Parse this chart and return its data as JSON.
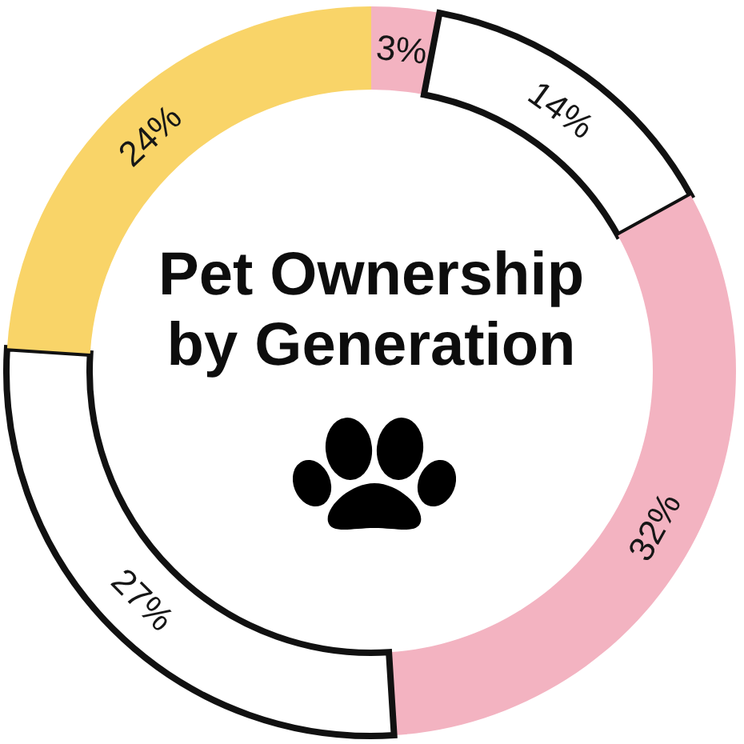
{
  "chart_data": {
    "type": "donut",
    "title": "Pet Ownership by Generation",
    "categories": [
      null,
      null,
      null,
      null,
      null
    ],
    "values": [
      3,
      14,
      32,
      27,
      24
    ],
    "colors": [
      "#f3b3c1",
      "#ffffff",
      "#f3b3c1",
      "#ffffff",
      "#f9d468"
    ],
    "value_labels": [
      "3%",
      "14%",
      "32%",
      "27%",
      "24%"
    ]
  }
}
